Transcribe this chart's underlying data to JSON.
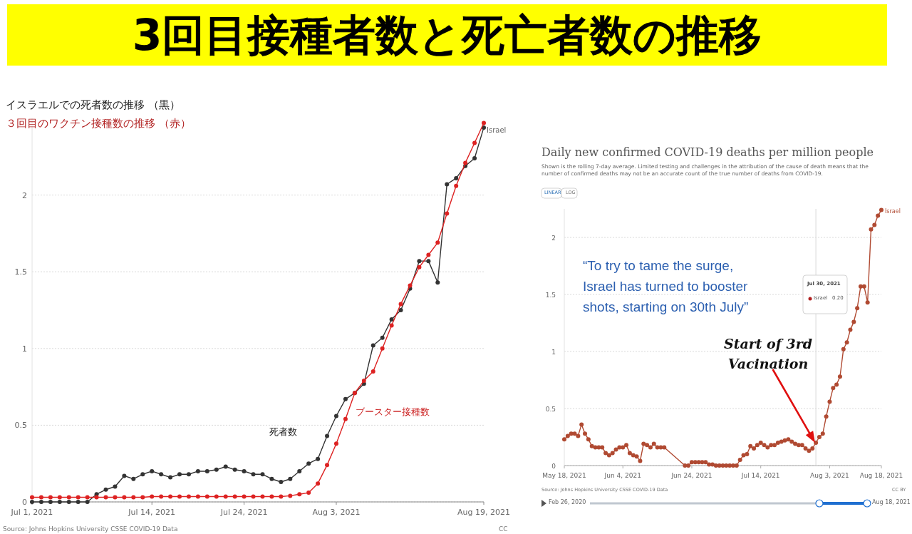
{
  "chart_data": [
    {
      "type": "line",
      "title": "3回目接種者数と死亡者数の推移",
      "x": [
        "2021-07-01",
        "2021-07-02",
        "2021-07-03",
        "2021-07-04",
        "2021-07-05",
        "2021-07-06",
        "2021-07-07",
        "2021-07-08",
        "2021-07-09",
        "2021-07-10",
        "2021-07-11",
        "2021-07-12",
        "2021-07-13",
        "2021-07-14",
        "2021-07-15",
        "2021-07-16",
        "2021-07-17",
        "2021-07-18",
        "2021-07-19",
        "2021-07-20",
        "2021-07-21",
        "2021-07-22",
        "2021-07-23",
        "2021-07-24",
        "2021-07-25",
        "2021-07-26",
        "2021-07-27",
        "2021-07-28",
        "2021-07-29",
        "2021-07-30",
        "2021-07-31",
        "2021-08-01",
        "2021-08-02",
        "2021-08-03",
        "2021-08-04",
        "2021-08-05",
        "2021-08-06",
        "2021-08-07",
        "2021-08-08",
        "2021-08-09",
        "2021-08-10",
        "2021-08-11",
        "2021-08-12",
        "2021-08-13",
        "2021-08-14",
        "2021-08-15",
        "2021-08-16",
        "2021-08-17",
        "2021-08-18",
        "2021-08-19"
      ],
      "series": [
        {
          "name": "死者数",
          "color": "#333333",
          "values": [
            0,
            0,
            0,
            0,
            0,
            0,
            0,
            0.05,
            0.08,
            0.1,
            0.17,
            0.15,
            0.18,
            0.2,
            0.18,
            0.16,
            0.18,
            0.18,
            0.2,
            0.2,
            0.21,
            0.23,
            0.21,
            0.2,
            0.18,
            0.18,
            0.15,
            0.13,
            0.15,
            0.2,
            0.25,
            0.28,
            0.43,
            0.56,
            0.67,
            0.71,
            0.77,
            1.02,
            1.07,
            1.19,
            1.25,
            1.39,
            1.57,
            1.57,
            1.43,
            2.07,
            2.11,
            2.19,
            2.24,
            2.44
          ]
        },
        {
          "name": "ブースター接種数",
          "color": "#dd2222",
          "values": [
            0.03,
            0.03,
            0.03,
            0.03,
            0.03,
            0.03,
            0.03,
            0.03,
            0.03,
            0.03,
            0.03,
            0.03,
            0.03,
            0.035,
            0.035,
            0.035,
            0.035,
            0.035,
            0.035,
            0.035,
            0.035,
            0.035,
            0.035,
            0.035,
            0.035,
            0.035,
            0.035,
            0.035,
            0.04,
            0.05,
            0.06,
            0.12,
            0.24,
            0.38,
            0.54,
            0.71,
            0.79,
            0.85,
            1.0,
            1.15,
            1.29,
            1.41,
            1.53,
            1.61,
            1.69,
            1.88,
            2.06,
            2.21,
            2.34,
            2.47
          ]
        }
      ],
      "xlim": [
        "2021-07-01",
        "2021-08-19"
      ],
      "ylim": [
        0,
        2.5
      ],
      "xticks": [
        {
          "value": "2021-07-01",
          "label": "Jul 1, 2021"
        },
        {
          "value": "2021-07-14",
          "label": "Jul 14, 2021"
        },
        {
          "value": "2021-07-24",
          "label": "Jul 24, 2021"
        },
        {
          "value": "2021-08-03",
          "label": "Aug 3, 2021"
        },
        {
          "value": "2021-08-19",
          "label": "Aug 19, 2021"
        }
      ],
      "yticks": [
        0,
        0.5,
        1,
        1.5,
        2
      ],
      "grid": "y",
      "marker": "circle",
      "annotations": [
        "イスラエルでの死者数の推移 （黒）",
        "３回目のワクチン接種数の推移 （赤）",
        {
          "text": "Israel",
          "x": "2021-08-19",
          "y": 2.44
        },
        "Source: Johns Hopkins University CSSE COVID-19 Data",
        "CC"
      ]
    },
    {
      "type": "line",
      "title": "Daily new confirmed COVID-19 deaths per million people",
      "subtitle": "Shown is the rolling 7-day average. Limited testing and challenges in the attribution of the cause of death means that the number of confirmed deaths may not be an accurate count of the true number of deaths from COVID-19.",
      "series": [
        {
          "name": "Israel",
          "color": "#b04a32",
          "x": [
            "2021-05-18",
            "2021-05-19",
            "2021-05-20",
            "2021-05-21",
            "2021-05-22",
            "2021-05-23",
            "2021-05-24",
            "2021-05-25",
            "2021-05-26",
            "2021-05-27",
            "2021-05-28",
            "2021-05-29",
            "2021-05-30",
            "2021-05-31",
            "2021-06-01",
            "2021-06-02",
            "2021-06-03",
            "2021-06-04",
            "2021-06-05",
            "2021-06-06",
            "2021-06-07",
            "2021-06-08",
            "2021-06-09",
            "2021-06-10",
            "2021-06-11",
            "2021-06-12",
            "2021-06-13",
            "2021-06-14",
            "2021-06-15",
            "2021-06-16",
            "2021-06-22",
            "2021-06-23",
            "2021-06-24",
            "2021-06-25",
            "2021-06-26",
            "2021-06-27",
            "2021-06-28",
            "2021-06-29",
            "2021-06-30",
            "2021-07-01",
            "2021-07-02",
            "2021-07-03",
            "2021-07-04",
            "2021-07-05",
            "2021-07-06",
            "2021-07-07",
            "2021-07-08",
            "2021-07-09",
            "2021-07-10",
            "2021-07-11",
            "2021-07-12",
            "2021-07-13",
            "2021-07-14",
            "2021-07-15",
            "2021-07-16",
            "2021-07-17",
            "2021-07-18",
            "2021-07-19",
            "2021-07-20",
            "2021-07-21",
            "2021-07-22",
            "2021-07-23",
            "2021-07-24",
            "2021-07-25",
            "2021-07-26",
            "2021-07-27",
            "2021-07-28",
            "2021-07-29",
            "2021-07-30",
            "2021-07-31",
            "2021-08-01",
            "2021-08-02",
            "2021-08-03",
            "2021-08-04",
            "2021-08-05",
            "2021-08-06",
            "2021-08-07",
            "2021-08-08",
            "2021-08-09",
            "2021-08-10",
            "2021-08-11",
            "2021-08-12",
            "2021-08-13",
            "2021-08-14",
            "2021-08-15",
            "2021-08-16",
            "2021-08-17",
            "2021-08-18"
          ],
          "values": [
            0.23,
            0.26,
            0.28,
            0.28,
            0.26,
            0.36,
            0.28,
            0.23,
            0.17,
            0.16,
            0.16,
            0.16,
            0.11,
            0.09,
            0.11,
            0.14,
            0.16,
            0.16,
            0.18,
            0.11,
            0.09,
            0.08,
            0.04,
            0.19,
            0.18,
            0.16,
            0.19,
            0.16,
            0.16,
            0.16,
            0,
            0,
            0.03,
            0.03,
            0.03,
            0.03,
            0.03,
            0.01,
            0.01,
            0,
            0,
            0,
            0,
            0,
            0,
            0,
            0.05,
            0.09,
            0.1,
            0.17,
            0.15,
            0.18,
            0.2,
            0.18,
            0.16,
            0.18,
            0.18,
            0.2,
            0.21,
            0.22,
            0.23,
            0.21,
            0.19,
            0.18,
            0.18,
            0.15,
            0.13,
            0.15,
            0.2,
            0.25,
            0.28,
            0.43,
            0.56,
            0.68,
            0.71,
            0.78,
            1.02,
            1.08,
            1.19,
            1.26,
            1.38,
            1.57,
            1.57,
            1.43,
            2.07,
            2.11,
            2.19,
            2.24
          ]
        }
      ],
      "xlim": [
        "2021-05-18",
        "2021-08-18"
      ],
      "ylim": [
        0,
        2.25
      ],
      "xticks": [
        {
          "value": "2021-05-18",
          "label": "May 18, 2021"
        },
        {
          "value": "2021-06-04",
          "label": "Jun 4, 2021"
        },
        {
          "value": "2021-06-24",
          "label": "Jun 24, 2021"
        },
        {
          "value": "2021-07-14",
          "label": "Jul 14, 2021"
        },
        {
          "value": "2021-08-03",
          "label": "Aug 3, 2021"
        },
        {
          "value": "2021-08-18",
          "label": "Aug 18, 2021"
        }
      ],
      "yticks": [
        0,
        0.5,
        1,
        1.5,
        2
      ],
      "grid": "y",
      "marker": "circle",
      "ref_lines": [
        {
          "axis": "x",
          "value": "2021-07-30",
          "color": "#d8d8d8"
        }
      ],
      "annotations": [
        "LINEAR",
        "LOG",
        "“To try to tame the surge, Israel has turned to booster shots, starting on 30th July”",
        "Start of 3rd Vacination",
        "Jul 30, 2021",
        "Israel",
        "0.20",
        "Source: Johns Hopkins University CSSE COVID-19 Data",
        "CC BY",
        "Feb 26, 2020",
        "Aug 18, 2021"
      ]
    }
  ]
}
